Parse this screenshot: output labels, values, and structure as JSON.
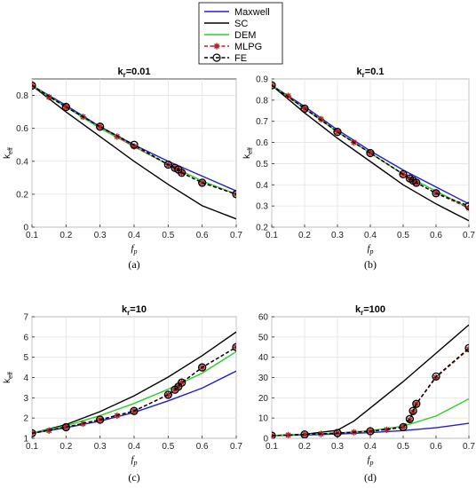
{
  "legend": [
    {
      "name": "Maxwell",
      "color": "#2020c8",
      "style": "solid"
    },
    {
      "name": "SC",
      "color": "#000000",
      "style": "solid"
    },
    {
      "name": "DEM",
      "color": "#2ecc2e",
      "style": "solid"
    },
    {
      "name": "MLPG",
      "color": "#b22222",
      "style": "dashed-star"
    },
    {
      "name": "FE",
      "color": "#000000",
      "style": "dashed-circle"
    }
  ],
  "chart_data": [
    {
      "type": "line",
      "panel_label": "(a)",
      "title_main": "k",
      "title_sub": "r",
      "title_rest": "=0.01",
      "xlabel_main": "f",
      "xlabel_sub": "p",
      "ylabel_main": "k",
      "ylabel_sub": "eff",
      "xlim": [
        0.1,
        0.7
      ],
      "ylim": [
        0,
        0.9
      ],
      "xticks": [
        0.1,
        0.2,
        0.3,
        0.4,
        0.5,
        0.6,
        0.7
      ],
      "xtick_labels": [
        "0.1",
        "0.2",
        "0.3",
        "0.4",
        "0.5",
        "0.6",
        "0.7"
      ],
      "yticks": [
        0,
        0.2,
        0.4,
        0.6,
        0.8
      ],
      "ytick_labels": [
        "0",
        "0.2",
        "0.4",
        "0.6",
        "0.8"
      ],
      "grid": true,
      "series": [
        {
          "name": "Maxwell",
          "x": [
            0.1,
            0.2,
            0.3,
            0.4,
            0.5,
            0.6,
            0.7
          ],
          "y": [
            0.86,
            0.74,
            0.61,
            0.5,
            0.4,
            0.31,
            0.22
          ]
        },
        {
          "name": "SC",
          "x": [
            0.1,
            0.2,
            0.3,
            0.4,
            0.5,
            0.6,
            0.7
          ],
          "y": [
            0.86,
            0.7,
            0.55,
            0.4,
            0.26,
            0.13,
            0.05
          ]
        },
        {
          "name": "DEM",
          "x": [
            0.1,
            0.2,
            0.3,
            0.4,
            0.5,
            0.6,
            0.7
          ],
          "y": [
            0.86,
            0.73,
            0.6,
            0.49,
            0.38,
            0.28,
            0.2
          ]
        },
        {
          "name": "MLPG",
          "x": [
            0.1,
            0.15,
            0.2,
            0.25,
            0.3,
            0.35,
            0.4,
            0.5,
            0.52,
            0.53,
            0.54,
            0.6,
            0.7
          ],
          "y": [
            0.86,
            0.79,
            0.73,
            0.67,
            0.61,
            0.55,
            0.49,
            0.38,
            0.36,
            0.35,
            0.33,
            0.27,
            0.2
          ]
        },
        {
          "name": "FE",
          "x": [
            0.1,
            0.2,
            0.3,
            0.4,
            0.5,
            0.52,
            0.53,
            0.54,
            0.6,
            0.7
          ],
          "y": [
            0.86,
            0.73,
            0.61,
            0.5,
            0.38,
            0.36,
            0.35,
            0.33,
            0.27,
            0.2
          ]
        }
      ]
    },
    {
      "type": "line",
      "panel_label": "(b)",
      "title_main": "k",
      "title_sub": "r",
      "title_rest": "=0.1",
      "xlabel_main": "f",
      "xlabel_sub": "p",
      "ylabel_main": "k",
      "ylabel_sub": "eff",
      "xlim": [
        0.1,
        0.7
      ],
      "ylim": [
        0.2,
        0.9
      ],
      "xticks": [
        0.1,
        0.2,
        0.3,
        0.4,
        0.5,
        0.6,
        0.7
      ],
      "xtick_labels": [
        "0.1",
        "0.2",
        "0.3",
        "0.4",
        "0.5",
        "0.6",
        "0.7"
      ],
      "yticks": [
        0.2,
        0.3,
        0.4,
        0.5,
        0.6,
        0.7,
        0.8,
        0.9
      ],
      "ytick_labels": [
        "0.2",
        "0.3",
        "0.4",
        "0.5",
        "0.6",
        "0.7",
        "0.8",
        "0.9"
      ],
      "grid": true,
      "series": [
        {
          "name": "Maxwell",
          "x": [
            0.1,
            0.2,
            0.3,
            0.4,
            0.5,
            0.6,
            0.7
          ],
          "y": [
            0.87,
            0.77,
            0.66,
            0.56,
            0.47,
            0.39,
            0.31
          ]
        },
        {
          "name": "SC",
          "x": [
            0.1,
            0.2,
            0.3,
            0.4,
            0.5,
            0.6,
            0.7
          ],
          "y": [
            0.87,
            0.74,
            0.62,
            0.51,
            0.4,
            0.31,
            0.23
          ]
        },
        {
          "name": "DEM",
          "x": [
            0.1,
            0.2,
            0.3,
            0.4,
            0.5,
            0.6,
            0.7
          ],
          "y": [
            0.87,
            0.76,
            0.65,
            0.55,
            0.45,
            0.37,
            0.29
          ]
        },
        {
          "name": "MLPG",
          "x": [
            0.1,
            0.15,
            0.2,
            0.25,
            0.3,
            0.35,
            0.4,
            0.5,
            0.52,
            0.53,
            0.54,
            0.6,
            0.7
          ],
          "y": [
            0.87,
            0.82,
            0.76,
            0.71,
            0.65,
            0.6,
            0.55,
            0.45,
            0.43,
            0.42,
            0.41,
            0.36,
            0.29
          ]
        },
        {
          "name": "FE",
          "x": [
            0.1,
            0.2,
            0.3,
            0.4,
            0.5,
            0.52,
            0.53,
            0.54,
            0.6,
            0.7
          ],
          "y": [
            0.87,
            0.76,
            0.65,
            0.55,
            0.45,
            0.43,
            0.42,
            0.41,
            0.36,
            0.3
          ]
        }
      ]
    },
    {
      "type": "line",
      "panel_label": "(c)",
      "title_main": "k",
      "title_sub": "r",
      "title_rest": "=10",
      "xlabel_main": "f",
      "xlabel_sub": "p",
      "ylabel_main": "k",
      "ylabel_sub": "eff",
      "xlim": [
        0.1,
        0.7
      ],
      "ylim": [
        1,
        7
      ],
      "xticks": [
        0.1,
        0.2,
        0.3,
        0.4,
        0.5,
        0.6,
        0.7
      ],
      "xtick_labels": [
        "0.1",
        "0.2",
        "0.3",
        "0.4",
        "0.5",
        "0.6",
        "0.7"
      ],
      "yticks": [
        1,
        2,
        3,
        4,
        5,
        6,
        7
      ],
      "ytick_labels": [
        "1",
        "2",
        "3",
        "4",
        "5",
        "6",
        "7"
      ],
      "grid": true,
      "series": [
        {
          "name": "Maxwell",
          "x": [
            0.1,
            0.2,
            0.3,
            0.4,
            0.5,
            0.6,
            0.7
          ],
          "y": [
            1.25,
            1.52,
            1.85,
            2.28,
            2.85,
            3.48,
            4.32
          ]
        },
        {
          "name": "SC",
          "x": [
            0.1,
            0.2,
            0.3,
            0.4,
            0.5,
            0.6,
            0.7
          ],
          "y": [
            1.25,
            1.68,
            2.32,
            3.1,
            4.02,
            5.08,
            6.25
          ]
        },
        {
          "name": "DEM",
          "x": [
            0.1,
            0.2,
            0.3,
            0.4,
            0.5,
            0.6,
            0.7
          ],
          "y": [
            1.25,
            1.62,
            2.12,
            2.72,
            3.42,
            4.22,
            5.28
          ]
        },
        {
          "name": "MLPG",
          "x": [
            0.1,
            0.15,
            0.2,
            0.25,
            0.3,
            0.35,
            0.4,
            0.5,
            0.52,
            0.53,
            0.54,
            0.6,
            0.7
          ],
          "y": [
            1.25,
            1.38,
            1.55,
            1.72,
            1.92,
            2.12,
            2.35,
            3.15,
            3.4,
            3.55,
            3.75,
            4.5,
            5.5
          ]
        },
        {
          "name": "FE",
          "x": [
            0.1,
            0.2,
            0.3,
            0.4,
            0.5,
            0.52,
            0.53,
            0.54,
            0.6,
            0.7
          ],
          "y": [
            1.25,
            1.55,
            1.92,
            2.35,
            3.15,
            3.4,
            3.55,
            3.75,
            4.5,
            5.5
          ]
        }
      ]
    },
    {
      "type": "line",
      "panel_label": "(d)",
      "title_main": "k",
      "title_sub": "r",
      "title_rest": "=100",
      "xlabel_main": "f",
      "xlabel_sub": "p",
      "ylabel_main": "",
      "ylabel_sub": "",
      "xlim": [
        0.1,
        0.7
      ],
      "ylim": [
        0,
        60
      ],
      "xticks": [
        0.1,
        0.2,
        0.3,
        0.4,
        0.5,
        0.6,
        0.7
      ],
      "xtick_labels": [
        "0.1",
        "0.2",
        "0.3",
        "0.4",
        "0.5",
        "0.6",
        "0.7"
      ],
      "yticks": [
        0,
        10,
        20,
        30,
        40,
        50,
        60
      ],
      "ytick_labels": [
        "0",
        "10",
        "20",
        "30",
        "40",
        "50",
        "60"
      ],
      "grid": true,
      "series": [
        {
          "name": "Maxwell",
          "x": [
            0.1,
            0.2,
            0.3,
            0.4,
            0.5,
            0.6,
            0.7
          ],
          "y": [
            1.3,
            1.6,
            2.1,
            2.8,
            3.8,
            5.2,
            7.4
          ]
        },
        {
          "name": "SC",
          "x": [
            0.1,
            0.2,
            0.3,
            0.35,
            0.4,
            0.5,
            0.6,
            0.7
          ],
          "y": [
            1.3,
            2.0,
            4.0,
            8.5,
            15.0,
            28.0,
            42.0,
            56.0
          ]
        },
        {
          "name": "DEM",
          "x": [
            0.1,
            0.2,
            0.3,
            0.4,
            0.5,
            0.6,
            0.7
          ],
          "y": [
            1.3,
            1.9,
            2.6,
            3.8,
            6.0,
            11.0,
            19.5
          ]
        },
        {
          "name": "MLPG",
          "x": [
            0.1,
            0.15,
            0.2,
            0.25,
            0.3,
            0.35,
            0.4,
            0.45,
            0.5,
            0.52,
            0.53,
            0.54,
            0.6,
            0.7
          ],
          "y": [
            1.3,
            1.6,
            1.9,
            2.2,
            2.6,
            3.0,
            3.5,
            4.2,
            5.5,
            9.0,
            13.0,
            17.0,
            30.0,
            44.0
          ]
        },
        {
          "name": "FE",
          "x": [
            0.1,
            0.2,
            0.3,
            0.4,
            0.5,
            0.52,
            0.53,
            0.54,
            0.6,
            0.7
          ],
          "y": [
            1.3,
            1.9,
            2.6,
            3.5,
            5.5,
            9.5,
            13.5,
            17.0,
            30.5,
            44.5
          ]
        }
      ]
    }
  ]
}
